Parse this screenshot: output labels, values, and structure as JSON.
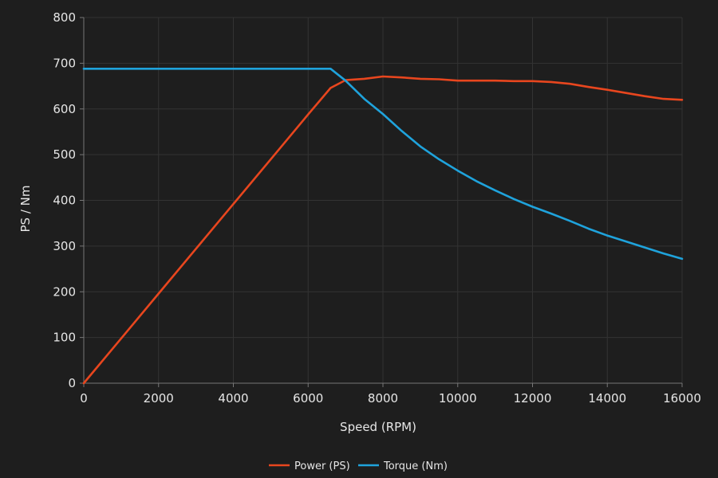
{
  "chart_data": {
    "type": "line",
    "title": "",
    "xlabel": "Speed (RPM)",
    "ylabel": "PS / Nm",
    "xlim": [
      0,
      16000
    ],
    "ylim": [
      0,
      800
    ],
    "x_ticks": [
      0,
      2000,
      4000,
      6000,
      8000,
      10000,
      12000,
      14000,
      16000
    ],
    "y_ticks": [
      0,
      100,
      200,
      300,
      400,
      500,
      600,
      700,
      800
    ],
    "grid": true,
    "legend_position": "bottom-center",
    "background_color": "#1e1e1e",
    "series": [
      {
        "name": "Power (PS)",
        "color": "#e8461e",
        "x": [
          0,
          1000,
          2000,
          3000,
          4000,
          5000,
          6000,
          6600,
          7000,
          7500,
          8000,
          8500,
          9000,
          9500,
          10000,
          10500,
          11000,
          11500,
          12000,
          12500,
          13000,
          13500,
          14000,
          14500,
          15000,
          15500,
          16000
        ],
        "y": [
          0,
          98,
          196,
          294,
          392,
          490,
          588,
          646,
          663,
          666,
          671,
          669,
          666,
          665,
          662,
          662,
          662,
          661,
          661,
          659,
          655,
          648,
          642,
          635,
          628,
          622,
          620
        ]
      },
      {
        "name": "Torque (Nm)",
        "color": "#1fa3dc",
        "x": [
          0,
          1000,
          2000,
          3000,
          4000,
          5000,
          6000,
          6600,
          7000,
          7500,
          8000,
          8500,
          9000,
          9500,
          10000,
          10500,
          11000,
          11500,
          12000,
          12500,
          13000,
          13500,
          14000,
          14500,
          15000,
          15500,
          16000
        ],
        "y": [
          688,
          688,
          688,
          688,
          688,
          688,
          688,
          688,
          662,
          622,
          589,
          552,
          518,
          490,
          465,
          442,
          422,
          403,
          386,
          371,
          355,
          338,
          323,
          310,
          297,
          284,
          272
        ]
      }
    ]
  }
}
